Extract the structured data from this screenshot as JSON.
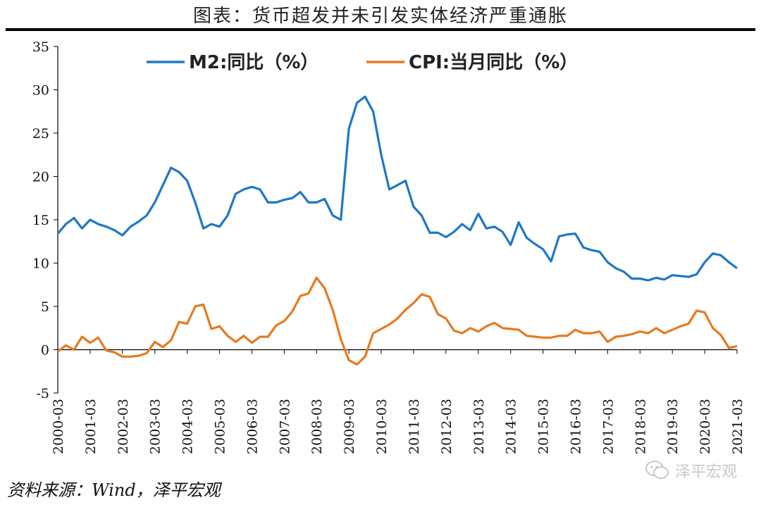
{
  "header": {
    "title": "图表：货币超发并未引发实体经济严重通胀"
  },
  "footer": {
    "source": "资料来源：Wind，泽平宏观",
    "watermark": "泽平宏观",
    "watermark_icon": "wechat-icon"
  },
  "chart_data": {
    "type": "line",
    "title": "图表：货币超发并未引发实体经济严重通胀",
    "xlabel": "",
    "ylabel": "",
    "ylim": [
      -5,
      35
    ],
    "yticks": [
      -5,
      0,
      5,
      10,
      15,
      20,
      25,
      30,
      35
    ],
    "xticks": [
      "2000-03",
      "2001-03",
      "2002-03",
      "2003-03",
      "2004-03",
      "2005-03",
      "2006-03",
      "2007-03",
      "2008-03",
      "2009-03",
      "2010-03",
      "2011-03",
      "2012-03",
      "2013-03",
      "2014-03",
      "2015-03",
      "2016-03",
      "2017-03",
      "2018-03",
      "2019-03",
      "2020-03",
      "2021-03"
    ],
    "legend": "top",
    "grid": false,
    "series": [
      {
        "name": "M2:同比（%）",
        "color": "#1f77c4",
        "points": [
          [
            "2000-03",
            13.4
          ],
          [
            "2000-06",
            14.5
          ],
          [
            "2000-09",
            15.2
          ],
          [
            "2000-12",
            14.0
          ],
          [
            "2001-03",
            15.0
          ],
          [
            "2001-06",
            14.5
          ],
          [
            "2001-09",
            14.2
          ],
          [
            "2001-12",
            13.8
          ],
          [
            "2002-03",
            13.2
          ],
          [
            "2002-06",
            14.2
          ],
          [
            "2002-09",
            14.8
          ],
          [
            "2002-12",
            15.5
          ],
          [
            "2003-03",
            17.0
          ],
          [
            "2003-06",
            19.0
          ],
          [
            "2003-09",
            21.0
          ],
          [
            "2003-12",
            20.5
          ],
          [
            "2004-03",
            19.5
          ],
          [
            "2004-06",
            17.0
          ],
          [
            "2004-09",
            14.0
          ],
          [
            "2004-12",
            14.5
          ],
          [
            "2005-03",
            14.2
          ],
          [
            "2005-06",
            15.5
          ],
          [
            "2005-09",
            18.0
          ],
          [
            "2005-12",
            18.5
          ],
          [
            "2006-03",
            18.8
          ],
          [
            "2006-06",
            18.5
          ],
          [
            "2006-09",
            17.0
          ],
          [
            "2006-12",
            17.0
          ],
          [
            "2007-03",
            17.3
          ],
          [
            "2007-06",
            17.5
          ],
          [
            "2007-09",
            18.2
          ],
          [
            "2007-12",
            17.0
          ],
          [
            "2008-03",
            17.0
          ],
          [
            "2008-06",
            17.4
          ],
          [
            "2008-09",
            15.5
          ],
          [
            "2008-12",
            15.0
          ],
          [
            "2009-03",
            25.5
          ],
          [
            "2009-06",
            28.5
          ],
          [
            "2009-09",
            29.2
          ],
          [
            "2009-12",
            27.5
          ],
          [
            "2010-03",
            22.5
          ],
          [
            "2010-06",
            18.5
          ],
          [
            "2010-09",
            19.0
          ],
          [
            "2010-12",
            19.5
          ],
          [
            "2011-03",
            16.5
          ],
          [
            "2011-06",
            15.5
          ],
          [
            "2011-09",
            13.5
          ],
          [
            "2011-12",
            13.5
          ],
          [
            "2012-03",
            13.0
          ],
          [
            "2012-06",
            13.6
          ],
          [
            "2012-09",
            14.5
          ],
          [
            "2012-12",
            13.8
          ],
          [
            "2013-03",
            15.7
          ],
          [
            "2013-06",
            14.0
          ],
          [
            "2013-09",
            14.2
          ],
          [
            "2013-12",
            13.6
          ],
          [
            "2014-03",
            12.1
          ],
          [
            "2014-06",
            14.7
          ],
          [
            "2014-09",
            12.9
          ],
          [
            "2014-12",
            12.2
          ],
          [
            "2015-03",
            11.6
          ],
          [
            "2015-06",
            10.2
          ],
          [
            "2015-09",
            13.1
          ],
          [
            "2015-12",
            13.3
          ],
          [
            "2016-03",
            13.4
          ],
          [
            "2016-06",
            11.8
          ],
          [
            "2016-09",
            11.5
          ],
          [
            "2016-12",
            11.3
          ],
          [
            "2017-03",
            10.1
          ],
          [
            "2017-06",
            9.4
          ],
          [
            "2017-09",
            9.0
          ],
          [
            "2017-12",
            8.2
          ],
          [
            "2018-03",
            8.2
          ],
          [
            "2018-06",
            8.0
          ],
          [
            "2018-09",
            8.3
          ],
          [
            "2018-12",
            8.1
          ],
          [
            "2019-03",
            8.6
          ],
          [
            "2019-06",
            8.5
          ],
          [
            "2019-09",
            8.4
          ],
          [
            "2019-12",
            8.7
          ],
          [
            "2020-03",
            10.1
          ],
          [
            "2020-06",
            11.1
          ],
          [
            "2020-09",
            10.9
          ],
          [
            "2020-12",
            10.1
          ],
          [
            "2021-03",
            9.4
          ]
        ]
      },
      {
        "name": "CPI:当月同比（%）",
        "color": "#e67a1f",
        "points": [
          [
            "2000-03",
            -0.2
          ],
          [
            "2000-06",
            0.5
          ],
          [
            "2000-09",
            0.0
          ],
          [
            "2000-12",
            1.5
          ],
          [
            "2001-03",
            0.8
          ],
          [
            "2001-06",
            1.4
          ],
          [
            "2001-09",
            -0.1
          ],
          [
            "2001-12",
            -0.3
          ],
          [
            "2002-03",
            -0.8
          ],
          [
            "2002-06",
            -0.8
          ],
          [
            "2002-09",
            -0.7
          ],
          [
            "2002-12",
            -0.4
          ],
          [
            "2003-03",
            0.9
          ],
          [
            "2003-06",
            0.3
          ],
          [
            "2003-09",
            1.1
          ],
          [
            "2003-12",
            3.2
          ],
          [
            "2004-03",
            3.0
          ],
          [
            "2004-06",
            5.0
          ],
          [
            "2004-09",
            5.2
          ],
          [
            "2004-12",
            2.4
          ],
          [
            "2005-03",
            2.7
          ],
          [
            "2005-06",
            1.6
          ],
          [
            "2005-09",
            0.9
          ],
          [
            "2005-12",
            1.6
          ],
          [
            "2006-03",
            0.8
          ],
          [
            "2006-06",
            1.5
          ],
          [
            "2006-09",
            1.5
          ],
          [
            "2006-12",
            2.8
          ],
          [
            "2007-03",
            3.3
          ],
          [
            "2007-06",
            4.4
          ],
          [
            "2007-09",
            6.2
          ],
          [
            "2007-12",
            6.5
          ],
          [
            "2008-03",
            8.3
          ],
          [
            "2008-06",
            7.1
          ],
          [
            "2008-09",
            4.6
          ],
          [
            "2008-12",
            1.2
          ],
          [
            "2009-03",
            -1.2
          ],
          [
            "2009-06",
            -1.7
          ],
          [
            "2009-09",
            -0.8
          ],
          [
            "2009-12",
            1.9
          ],
          [
            "2010-03",
            2.4
          ],
          [
            "2010-06",
            2.9
          ],
          [
            "2010-09",
            3.6
          ],
          [
            "2010-12",
            4.6
          ],
          [
            "2011-03",
            5.4
          ],
          [
            "2011-06",
            6.4
          ],
          [
            "2011-09",
            6.1
          ],
          [
            "2011-12",
            4.1
          ],
          [
            "2012-03",
            3.6
          ],
          [
            "2012-06",
            2.2
          ],
          [
            "2012-09",
            1.9
          ],
          [
            "2012-12",
            2.5
          ],
          [
            "2013-03",
            2.1
          ],
          [
            "2013-06",
            2.7
          ],
          [
            "2013-09",
            3.1
          ],
          [
            "2013-12",
            2.5
          ],
          [
            "2014-03",
            2.4
          ],
          [
            "2014-06",
            2.3
          ],
          [
            "2014-09",
            1.6
          ],
          [
            "2014-12",
            1.5
          ],
          [
            "2015-03",
            1.4
          ],
          [
            "2015-06",
            1.4
          ],
          [
            "2015-09",
            1.6
          ],
          [
            "2015-12",
            1.6
          ],
          [
            "2016-03",
            2.3
          ],
          [
            "2016-06",
            1.9
          ],
          [
            "2016-09",
            1.9
          ],
          [
            "2016-12",
            2.1
          ],
          [
            "2017-03",
            0.9
          ],
          [
            "2017-06",
            1.5
          ],
          [
            "2017-09",
            1.6
          ],
          [
            "2017-12",
            1.8
          ],
          [
            "2018-03",
            2.1
          ],
          [
            "2018-06",
            1.9
          ],
          [
            "2018-09",
            2.5
          ],
          [
            "2018-12",
            1.9
          ],
          [
            "2019-03",
            2.3
          ],
          [
            "2019-06",
            2.7
          ],
          [
            "2019-09",
            3.0
          ],
          [
            "2019-12",
            4.5
          ],
          [
            "2020-03",
            4.3
          ],
          [
            "2020-06",
            2.5
          ],
          [
            "2020-09",
            1.7
          ],
          [
            "2020-12",
            0.2
          ],
          [
            "2021-03",
            0.4
          ]
        ]
      }
    ]
  }
}
